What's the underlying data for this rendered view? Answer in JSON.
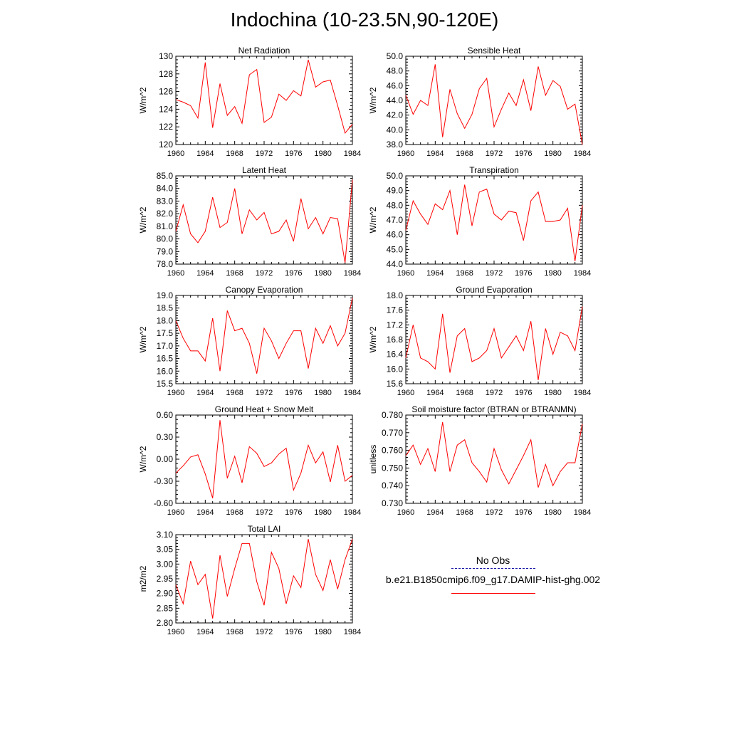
{
  "title": "Indochina (10-23.5N,90-120E)",
  "legend": {
    "items": [
      {
        "label": "No Obs",
        "color": "#1a1aa6",
        "style": "dashed"
      },
      {
        "label": "b.e21.B1850cmip6.f09_g17.DAMIP-hist-ghg.002",
        "color": "#ff0000",
        "style": "solid"
      }
    ]
  },
  "chart_data": [
    {
      "type": "line",
      "title": "Net Radiation",
      "ylabel": "W/m^2",
      "xlim": [
        1960,
        1984
      ],
      "ylim": [
        120,
        130
      ],
      "xticks": [
        "1960",
        "1964",
        "1968",
        "1972",
        "1976",
        "1980",
        "1984"
      ],
      "yticks": [
        "120",
        "122",
        "124",
        "126",
        "128",
        "130"
      ],
      "series": [
        {
          "color": "#ff0000",
          "x": [
            1960,
            1961,
            1962,
            1963,
            1964,
            1965,
            1966,
            1967,
            1968,
            1969,
            1970,
            1971,
            1972,
            1973,
            1974,
            1975,
            1976,
            1977,
            1978,
            1979,
            1980,
            1981,
            1982,
            1983,
            1984
          ],
          "values": [
            125.1,
            124.8,
            124.4,
            123.0,
            129.3,
            121.9,
            126.9,
            123.3,
            124.3,
            122.4,
            127.9,
            128.5,
            122.5,
            123.1,
            125.7,
            125.0,
            126.1,
            125.5,
            129.6,
            126.5,
            127.1,
            127.3,
            124.4,
            121.3,
            122.3
          ]
        }
      ]
    },
    {
      "type": "line",
      "title": "Sensible Heat",
      "ylabel": "W/m^2",
      "xlim": [
        1960,
        1984
      ],
      "ylim": [
        38,
        50
      ],
      "xticks": [
        "1960",
        "1964",
        "1968",
        "1972",
        "1976",
        "1980",
        "1984"
      ],
      "yticks": [
        "38.0",
        "40.0",
        "42.0",
        "44.0",
        "46.0",
        "48.0",
        "50.0"
      ],
      "series": [
        {
          "color": "#ff0000",
          "x": [
            1960,
            1961,
            1962,
            1963,
            1964,
            1965,
            1966,
            1967,
            1968,
            1969,
            1970,
            1971,
            1972,
            1973,
            1974,
            1975,
            1976,
            1977,
            1978,
            1979,
            1980,
            1981,
            1982,
            1983,
            1984
          ],
          "values": [
            44.7,
            42.1,
            44.0,
            43.3,
            48.9,
            39.0,
            45.5,
            42.2,
            40.2,
            42.1,
            45.6,
            47.0,
            40.4,
            42.8,
            45.0,
            43.3,
            46.8,
            42.6,
            48.6,
            44.7,
            46.7,
            45.9,
            42.8,
            43.5,
            38.0
          ]
        }
      ]
    },
    {
      "type": "line",
      "title": "Latent Heat",
      "ylabel": "W/m^2",
      "xlim": [
        1960,
        1984
      ],
      "ylim": [
        78,
        85
      ],
      "xticks": [
        "1960",
        "1964",
        "1968",
        "1972",
        "1976",
        "1980",
        "1984"
      ],
      "yticks": [
        "78.0",
        "79.0",
        "80.0",
        "81.0",
        "82.0",
        "83.0",
        "84.0",
        "85.0"
      ],
      "series": [
        {
          "color": "#ff0000",
          "x": [
            1960,
            1961,
            1962,
            1963,
            1964,
            1965,
            1966,
            1967,
            1968,
            1969,
            1970,
            1971,
            1972,
            1973,
            1974,
            1975,
            1976,
            1977,
            1978,
            1979,
            1980,
            1981,
            1982,
            1983,
            1984
          ],
          "values": [
            80.6,
            82.7,
            80.4,
            79.7,
            80.6,
            83.3,
            80.9,
            81.3,
            84.0,
            80.4,
            82.3,
            81.5,
            82.1,
            80.4,
            80.6,
            81.5,
            79.8,
            83.2,
            80.8,
            81.7,
            80.4,
            81.7,
            81.6,
            78.1,
            84.7
          ]
        }
      ]
    },
    {
      "type": "line",
      "title": "Transpiration",
      "ylabel": "W/m^2",
      "xlim": [
        1960,
        1984
      ],
      "ylim": [
        44,
        50
      ],
      "xticks": [
        "1960",
        "1964",
        "1968",
        "1972",
        "1976",
        "1980",
        "1984"
      ],
      "yticks": [
        "44.0",
        "45.0",
        "46.0",
        "47.0",
        "48.0",
        "49.0",
        "50.0"
      ],
      "series": [
        {
          "color": "#ff0000",
          "x": [
            1960,
            1961,
            1962,
            1963,
            1964,
            1965,
            1966,
            1967,
            1968,
            1969,
            1970,
            1971,
            1972,
            1973,
            1974,
            1975,
            1976,
            1977,
            1978,
            1979,
            1980,
            1981,
            1982,
            1983,
            1984
          ],
          "values": [
            46.3,
            48.3,
            47.4,
            46.7,
            48.1,
            47.7,
            49.0,
            46.0,
            49.4,
            46.6,
            48.9,
            49.1,
            47.4,
            47.0,
            47.6,
            47.5,
            45.6,
            48.3,
            48.9,
            46.9,
            46.9,
            47.0,
            47.8,
            44.2,
            48.0
          ]
        }
      ]
    },
    {
      "type": "line",
      "title": "Canopy Evaporation",
      "ylabel": "W/m^2",
      "xlim": [
        1960,
        1984
      ],
      "ylim": [
        15.5,
        19
      ],
      "xticks": [
        "1960",
        "1964",
        "1968",
        "1972",
        "1976",
        "1980",
        "1984"
      ],
      "yticks": [
        "15.5",
        "16.0",
        "16.5",
        "17.0",
        "17.5",
        "18.0",
        "18.5",
        "19.0"
      ],
      "series": [
        {
          "color": "#ff0000",
          "x": [
            1960,
            1961,
            1962,
            1963,
            1964,
            1965,
            1966,
            1967,
            1968,
            1969,
            1970,
            1971,
            1972,
            1973,
            1974,
            1975,
            1976,
            1977,
            1978,
            1979,
            1980,
            1981,
            1982,
            1983,
            1984
          ],
          "values": [
            18.0,
            17.3,
            16.8,
            16.8,
            16.4,
            18.1,
            16.0,
            18.4,
            17.6,
            17.7,
            17.1,
            15.9,
            17.7,
            17.2,
            16.5,
            17.1,
            17.6,
            17.6,
            16.1,
            17.7,
            17.1,
            17.8,
            17.0,
            17.5,
            18.9
          ]
        }
      ]
    },
    {
      "type": "line",
      "title": "Ground Evaporation",
      "ylabel": "W/m^2",
      "xlim": [
        1960,
        1984
      ],
      "ylim": [
        15.6,
        18
      ],
      "xticks": [
        "1960",
        "1964",
        "1968",
        "1972",
        "1976",
        "1980",
        "1984"
      ],
      "yticks": [
        "15.6",
        "16.0",
        "16.4",
        "16.8",
        "17.2",
        "17.6",
        "18.0"
      ],
      "series": [
        {
          "color": "#ff0000",
          "x": [
            1960,
            1961,
            1962,
            1963,
            1964,
            1965,
            1966,
            1967,
            1968,
            1969,
            1970,
            1971,
            1972,
            1973,
            1974,
            1975,
            1976,
            1977,
            1978,
            1979,
            1980,
            1981,
            1982,
            1983,
            1984
          ],
          "values": [
            16.3,
            17.2,
            16.3,
            16.2,
            16.0,
            17.5,
            15.9,
            16.9,
            17.1,
            16.2,
            16.3,
            16.5,
            17.1,
            16.3,
            16.6,
            16.9,
            16.5,
            17.3,
            15.7,
            17.1,
            16.4,
            17.0,
            16.9,
            16.5,
            17.7
          ]
        }
      ]
    },
    {
      "type": "line",
      "title": "Ground Heat + Snow Melt",
      "ylabel": "W/m^2",
      "xlim": [
        1960,
        1984
      ],
      "ylim": [
        -0.6,
        0.6
      ],
      "xticks": [
        "1960",
        "1964",
        "1968",
        "1972",
        "1976",
        "1980",
        "1984"
      ],
      "yticks": [
        "-0.60",
        "-0.30",
        "0.00",
        "0.30",
        "0.60"
      ],
      "series": [
        {
          "color": "#ff0000",
          "x": [
            1960,
            1961,
            1962,
            1963,
            1964,
            1965,
            1966,
            1967,
            1968,
            1969,
            1970,
            1971,
            1972,
            1973,
            1974,
            1975,
            1976,
            1977,
            1978,
            1979,
            1980,
            1981,
            1982,
            1983,
            1984
          ],
          "values": [
            -0.19,
            -0.09,
            0.03,
            0.06,
            -0.2,
            -0.53,
            0.53,
            -0.26,
            0.04,
            -0.32,
            0.17,
            0.08,
            -0.1,
            -0.05,
            0.07,
            0.15,
            -0.42,
            -0.19,
            0.19,
            -0.05,
            0.1,
            -0.31,
            0.19,
            -0.3,
            -0.22
          ]
        }
      ]
    },
    {
      "type": "line",
      "title": "Soil moisture factor (BTRAN or BTRANMN)",
      "ylabel": "unitless",
      "xlim": [
        1960,
        1984
      ],
      "ylim": [
        0.73,
        0.78
      ],
      "xticks": [
        "1960",
        "1964",
        "1968",
        "1972",
        "1976",
        "1980",
        "1984"
      ],
      "yticks": [
        "0.730",
        "0.740",
        "0.750",
        "0.760",
        "0.770",
        "0.780"
      ],
      "series": [
        {
          "color": "#ff0000",
          "x": [
            1960,
            1961,
            1962,
            1963,
            1964,
            1965,
            1966,
            1967,
            1968,
            1969,
            1970,
            1971,
            1972,
            1973,
            1974,
            1975,
            1976,
            1977,
            1978,
            1979,
            1980,
            1981,
            1982,
            1983,
            1984
          ],
          "values": [
            0.757,
            0.763,
            0.752,
            0.761,
            0.748,
            0.776,
            0.748,
            0.763,
            0.766,
            0.753,
            0.748,
            0.742,
            0.761,
            0.749,
            0.741,
            0.749,
            0.757,
            0.766,
            0.739,
            0.752,
            0.74,
            0.748,
            0.753,
            0.753,
            0.775
          ]
        }
      ]
    },
    {
      "type": "line",
      "title": "Total LAI",
      "ylabel": "m2/m2",
      "xlim": [
        1960,
        1984
      ],
      "ylim": [
        2.8,
        3.1
      ],
      "xticks": [
        "1960",
        "1964",
        "1968",
        "1972",
        "1976",
        "1980",
        "1984"
      ],
      "yticks": [
        "2.80",
        "2.85",
        "2.90",
        "2.95",
        "3.00",
        "3.05",
        "3.10"
      ],
      "series": [
        {
          "color": "#ff0000",
          "x": [
            1960,
            1961,
            1962,
            1963,
            1964,
            1965,
            1966,
            1967,
            1968,
            1969,
            1970,
            1971,
            1972,
            1973,
            1974,
            1975,
            1976,
            1977,
            1978,
            1979,
            1980,
            1981,
            1982,
            1983,
            1984
          ],
          "values": [
            2.93,
            2.865,
            3.01,
            2.93,
            2.965,
            2.815,
            3.03,
            2.89,
            2.985,
            3.07,
            3.07,
            2.94,
            2.86,
            3.04,
            2.985,
            2.865,
            2.96,
            2.92,
            3.085,
            2.965,
            2.91,
            3.015,
            2.915,
            3.015,
            3.085
          ]
        }
      ]
    }
  ]
}
